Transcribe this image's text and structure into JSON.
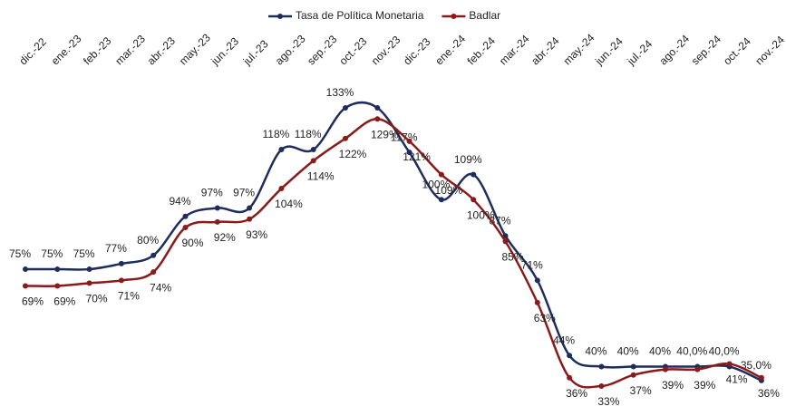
{
  "chart_data": {
    "type": "line",
    "categories": [
      "dic.-22",
      "ene.-23",
      "feb.-23",
      "mar.-23",
      "abr.-23",
      "may.-23",
      "jun.-23",
      "jul.-23",
      "ago.-23",
      "sep.-23",
      "oct.-23",
      "nov.-23",
      "dic.-23",
      "ene.-24",
      "feb.-24",
      "mar.-24",
      "abr.-24",
      "may.-24",
      "jun.-24",
      "jul.-24",
      "ago.-24",
      "sep.-24",
      "oct.-24",
      "nov.-24"
    ],
    "series": [
      {
        "name": "Tasa de Política Monetaria",
        "color": "#1f2d5c",
        "values": [
          75,
          75,
          75,
          77,
          80,
          94,
          97,
          97,
          118,
          118,
          133,
          133,
          117,
          100,
          109,
          87,
          71,
          44,
          40,
          40,
          40,
          40,
          40,
          35
        ],
        "value_labels": [
          "75%",
          "75%",
          "75%",
          "77%",
          "80%",
          "94%",
          "97%",
          "97%",
          "118%",
          "118%",
          "133%",
          null,
          "117%",
          "100%",
          "109%",
          "87%",
          "71%",
          "44%",
          "40%",
          "40%",
          "40%",
          "40,0%",
          "40,0%",
          "35,0%"
        ]
      },
      {
        "name": "Badlar",
        "color": "#8b1a1a",
        "values": [
          69,
          69,
          70,
          71,
          74,
          90,
          92,
          93,
          104,
          114,
          122,
          129,
          121,
          109,
          100,
          85,
          63,
          36,
          33,
          37,
          39,
          39,
          41,
          36
        ],
        "value_labels": [
          "69%",
          "69%",
          "70%",
          "71%",
          "74%",
          "90%",
          "92%",
          "93%",
          "104%",
          "114%",
          "122%",
          "129%",
          "121%",
          "109%",
          "100%",
          "85%",
          "63%",
          "36%",
          "33%",
          "37%",
          "39%",
          "39%",
          "41%",
          "36%"
        ]
      }
    ],
    "legend": "top"
  }
}
